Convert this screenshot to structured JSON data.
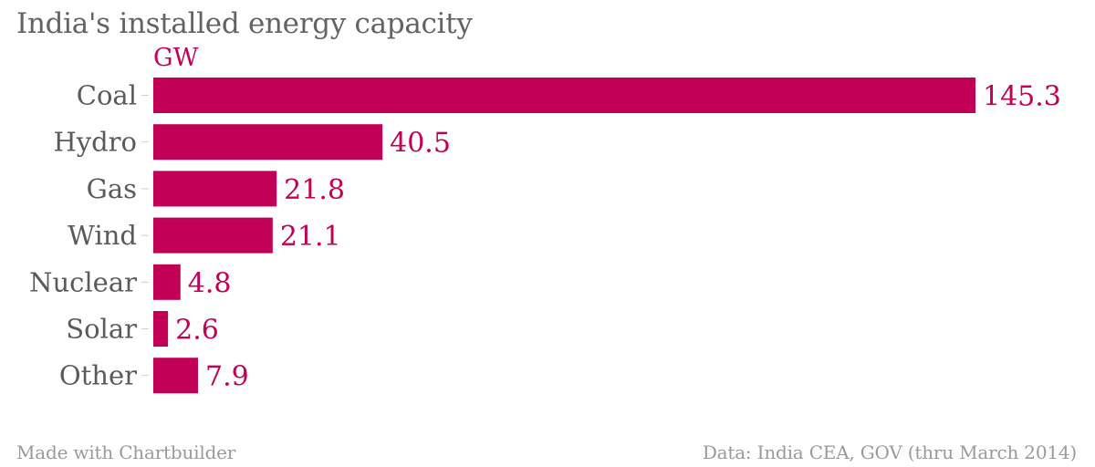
{
  "chart_data": {
    "type": "bar",
    "orientation": "horizontal",
    "title": "India's installed energy capacity",
    "unit_label": "GW",
    "categories": [
      "Coal",
      "Hydro",
      "Gas",
      "Wind",
      "Nuclear",
      "Solar",
      "Other"
    ],
    "values": [
      145.3,
      40.5,
      21.8,
      21.1,
      4.8,
      2.6,
      7.9
    ],
    "value_labels": [
      "145.3",
      "40.5",
      "21.8",
      "21.1",
      "4.8",
      "2.6",
      "7.9"
    ],
    "xlim": [
      0,
      145.3
    ],
    "grid": false,
    "legend": "none",
    "bar_color": "#c20055"
  },
  "footer": {
    "credit": "Made with Chartbuilder",
    "source": "Data: India CEA, GOV (thru March 2014)"
  },
  "colors": {
    "bar": "#c20055",
    "title": "#636363",
    "category_label": "#5a5a5a",
    "footer": "#9a9a9a"
  }
}
